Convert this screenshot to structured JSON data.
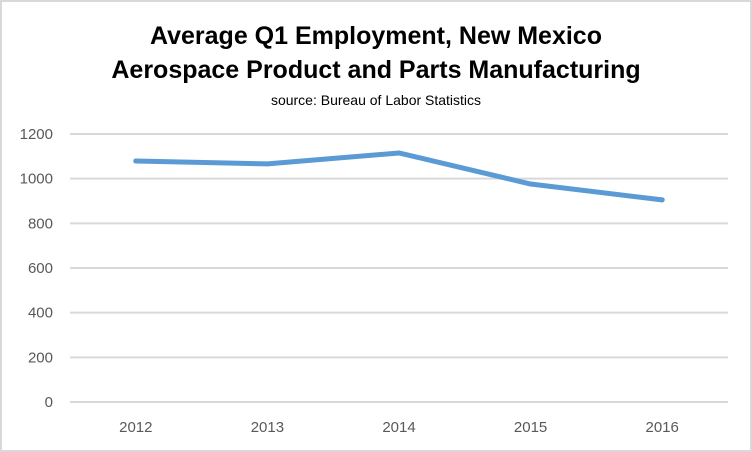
{
  "chart_data": {
    "type": "line",
    "title": "Average Q1 Employment, New Mexico",
    "subtitle_line2": "Aerospace Product and Parts Manufacturing",
    "source": "source: Bureau of Labor Statistics",
    "categories": [
      "2012",
      "2013",
      "2014",
      "2015",
      "2016"
    ],
    "series": [
      {
        "name": "Employment",
        "values": [
          1079,
          1066,
          1115,
          976,
          905
        ],
        "color": "#5b9bd5"
      }
    ],
    "ylim": [
      0,
      1200
    ],
    "yticks": [
      "0",
      "200",
      "400",
      "600",
      "800",
      "1000",
      "1200"
    ],
    "grid": true,
    "xlabel": "",
    "ylabel": ""
  }
}
